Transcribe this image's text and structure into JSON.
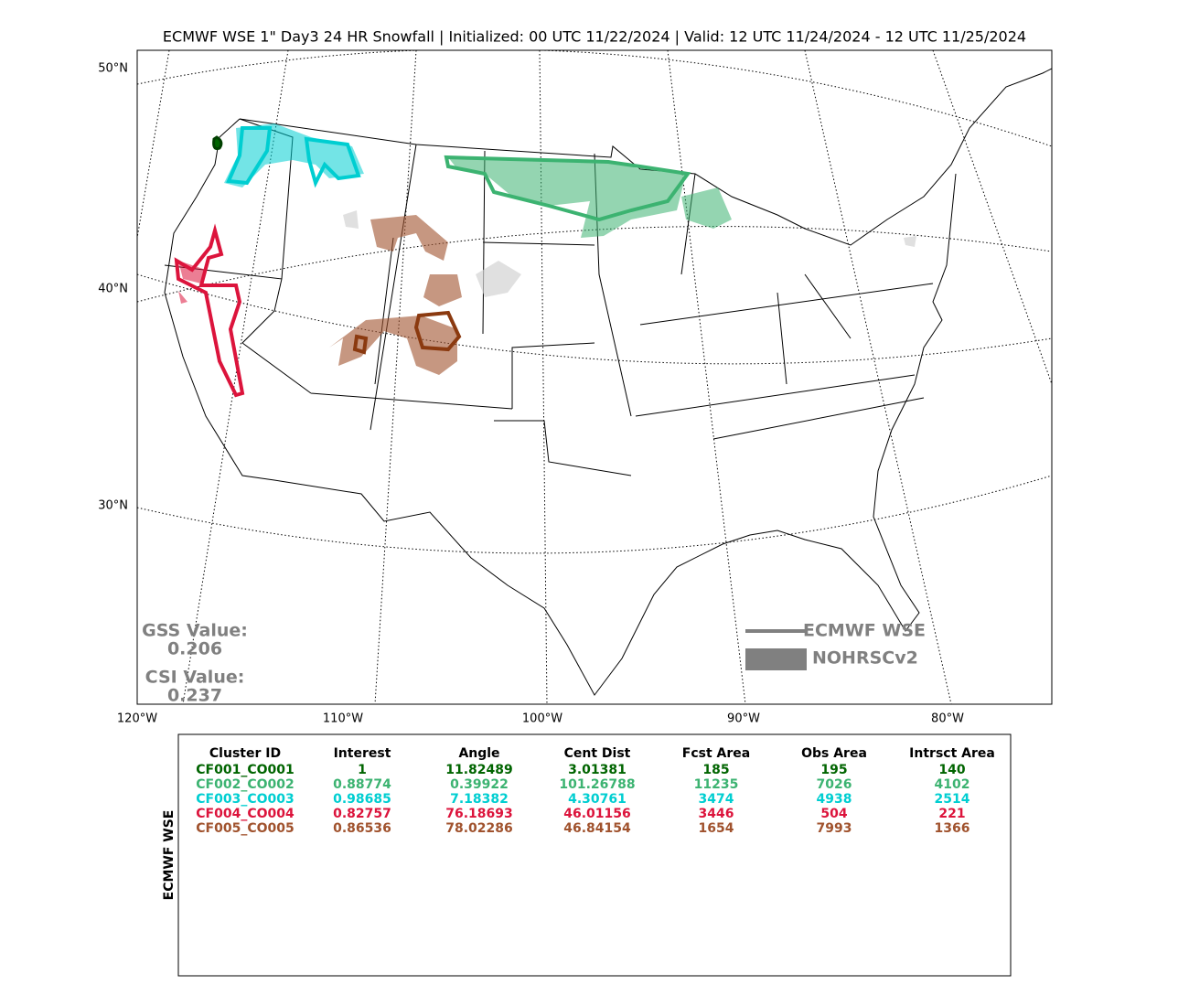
{
  "header": {
    "title": "ECMWF WSE 1\" Day3 24 HR Snowfall | Initialized: 00 UTC 11/22/2024 | Valid: 12 UTC 11/24/2024 - 12 UTC 11/25/2024"
  },
  "map": {
    "lat_labels": [
      "50°N",
      "40°N",
      "30°N"
    ],
    "lon_labels": [
      "120°W",
      "110°W",
      "100°W",
      "90°W",
      "80°W"
    ],
    "scores": [
      {
        "label": "GSS Value:",
        "value": 0.206
      },
      {
        "label": "CSI Value:",
        "value": 0.237
      }
    ],
    "legend": [
      "ECMWF WSE",
      "NOHRSCv2"
    ]
  },
  "table": {
    "side_label": "ECMWF WSE",
    "columns": [
      "Cluster ID",
      "Interest",
      "Angle",
      "Cent Dist",
      "Fcst Area",
      "Obs Area",
      "Intrsct Area"
    ],
    "rows": [
      {
        "color": "#006400",
        "cells": [
          "CF001_CO001",
          1,
          11.82489,
          3.01381,
          185,
          195,
          140
        ]
      },
      {
        "color": "#3cb371",
        "cells": [
          "CF002_CO002",
          0.88774,
          0.39922,
          101.26788,
          11235,
          7026,
          4102
        ]
      },
      {
        "color": "#00ced1",
        "cells": [
          "CF003_CO003",
          0.98685,
          7.18382,
          4.30761,
          3474,
          4938,
          2514
        ]
      },
      {
        "color": "#dc143c",
        "cells": [
          "CF004_CO004",
          0.82757,
          76.18693,
          46.01156,
          3446,
          504,
          221
        ]
      },
      {
        "color": "#a0522d",
        "cells": [
          "CF005_CO005",
          0.86536,
          78.02286,
          46.84154,
          1654,
          7993,
          1366
        ]
      }
    ]
  }
}
